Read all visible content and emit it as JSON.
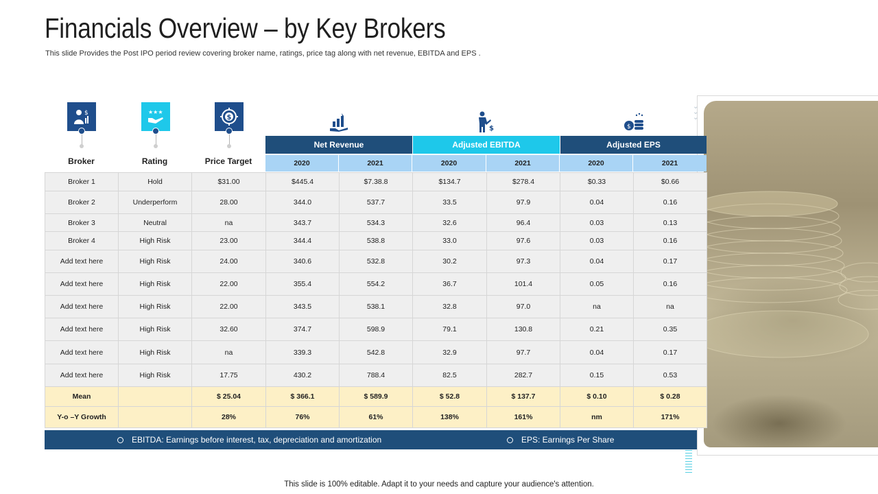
{
  "header": {
    "title": "Financials Overview – by Key Brokers",
    "subtitle": "This slide Provides the Post IPO period review covering broker name, ratings, price tag along with net revenue, EBITDA and EPS ."
  },
  "columns": {
    "broker": "Broker",
    "rating": "Rating",
    "price_target": "Price Target",
    "groups": [
      "Net Revenue",
      "Adjusted EBITDA",
      "Adjusted EPS"
    ],
    "years": [
      "2020",
      "2021",
      "2020",
      "2021",
      "2020",
      "2021"
    ]
  },
  "icons": {
    "broker": "investor-icon",
    "rating": "rating-stars-hand-icon",
    "price_target": "dollar-target-icon",
    "net_revenue": "revenue-growth-icon",
    "ebitda": "presenter-dollar-icon",
    "eps": "coin-stack-icon"
  },
  "rows": [
    [
      "Broker 1",
      "Hold",
      "$31.00",
      "$445.4",
      "$7.38.8",
      "$134.7",
      "$278.4",
      "$0.33",
      "$0.66"
    ],
    [
      "Broker 2",
      "Underperform",
      "28.00",
      "344.0",
      "537.7",
      "33.5",
      "97.9",
      "0.04",
      "0.16"
    ],
    [
      "Broker 3",
      "Neutral",
      "na",
      "343.7",
      "534.3",
      "32.6",
      "96.4",
      "0.03",
      "0.13"
    ],
    [
      "Broker 4",
      "High Risk",
      "23.00",
      "344.4",
      "538.8",
      "33.0",
      "97.6",
      "0.03",
      "0.16"
    ],
    [
      "Add text here",
      "High Risk",
      "24.00",
      "340.6",
      "532.8",
      "30.2",
      "97.3",
      "0.04",
      "0.17"
    ],
    [
      "Add text here",
      "High Risk",
      "22.00",
      "355.4",
      "554.2",
      "36.7",
      "101.4",
      "0.05",
      "0.16"
    ],
    [
      "Add text here",
      "High Risk",
      "22.00",
      "343.5",
      "538.1",
      "32.8",
      "97.0",
      "na",
      "na"
    ],
    [
      "Add text here",
      "High Risk",
      "32.60",
      "374.7",
      "598.9",
      "79.1",
      "130.8",
      "0.21",
      "0.35"
    ],
    [
      "Add text here",
      "High Risk",
      "na",
      "339.3",
      "542.8",
      "32.9",
      "97.7",
      "0.04",
      "0.17"
    ],
    [
      "Add text here",
      "High Risk",
      "17.75",
      "430.2",
      "788.4",
      "82.5",
      "282.7",
      "0.15",
      "0.53"
    ]
  ],
  "summary": [
    [
      "Mean",
      "",
      "$ 25.04",
      "$ 366.1",
      "$ 589.9",
      "$ 52.8",
      "$ 137.7",
      "$ 0.10",
      "$ 0.28"
    ],
    [
      "Y-o –Y Growth",
      "",
      "28%",
      "76%",
      "61%",
      "138%",
      "161%",
      "nm",
      "171%"
    ]
  ],
  "legend": {
    "ebitda": "EBITDA: Earnings before interest, tax, depreciation and amortization",
    "eps": "EPS: Earnings Per Share"
  },
  "footer": "This slide is 100% editable. Adapt it to your needs and capture your audience's attention.",
  "colors": {
    "navy": "#1f4e7a",
    "cyan": "#1ec8ea",
    "year_row": "#a9d4f5",
    "summary_row": "#fdf0c6"
  }
}
